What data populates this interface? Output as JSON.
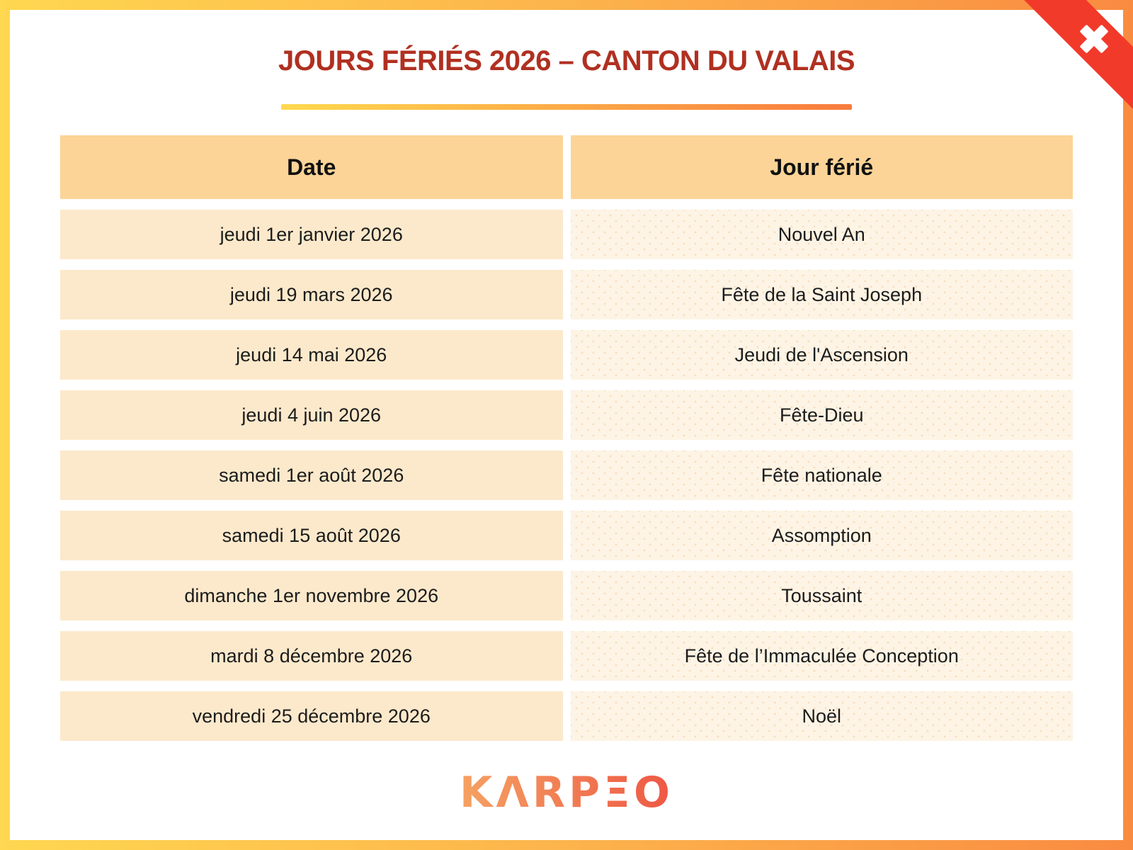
{
  "page": {
    "title": "JOURS FÉRIÉS 2026 – CANTON DU VALAIS"
  },
  "table": {
    "headers": [
      "Date",
      "Jour férié"
    ],
    "rows": [
      {
        "date": "jeudi 1er janvier 2026",
        "holiday": "Nouvel An"
      },
      {
        "date": "jeudi 19 mars 2026",
        "holiday": "Fête de la Saint Joseph"
      },
      {
        "date": "jeudi 14 mai 2026",
        "holiday": "Jeudi de l'Ascension"
      },
      {
        "date": "jeudi 4 juin 2026",
        "holiday": "Fête-Dieu"
      },
      {
        "date": "samedi 1er août 2026",
        "holiday": "Fête nationale"
      },
      {
        "date": "samedi 15 août 2026",
        "holiday": "Assomption"
      },
      {
        "date": "dimanche 1er novembre 2026",
        "holiday": "Toussaint"
      },
      {
        "date": "mardi 8 décembre 2026",
        "holiday": "Fête de l’Immaculée Conception"
      },
      {
        "date": "vendredi 25 décembre 2026",
        "holiday": "Noël"
      }
    ]
  },
  "corner_ribbon": {
    "icon": "swiss-cross-icon",
    "color": "#F23A2B"
  },
  "footer": {
    "logo_text": "KARPEO",
    "logo_display": "KΛRPΞO"
  },
  "colors": {
    "frame_gradient_from": "#FFD750",
    "frame_gradient_to": "#F98B41",
    "title": "#B03021",
    "header_cell_bg": "#FCD497",
    "date_cell_bg": "#FCE9CB",
    "holiday_cell_bg": "#FDF4E5",
    "ribbon_red": "#F23A2B",
    "logo_gradient_from": "#F5A263",
    "logo_gradient_to": "#EE5744"
  }
}
